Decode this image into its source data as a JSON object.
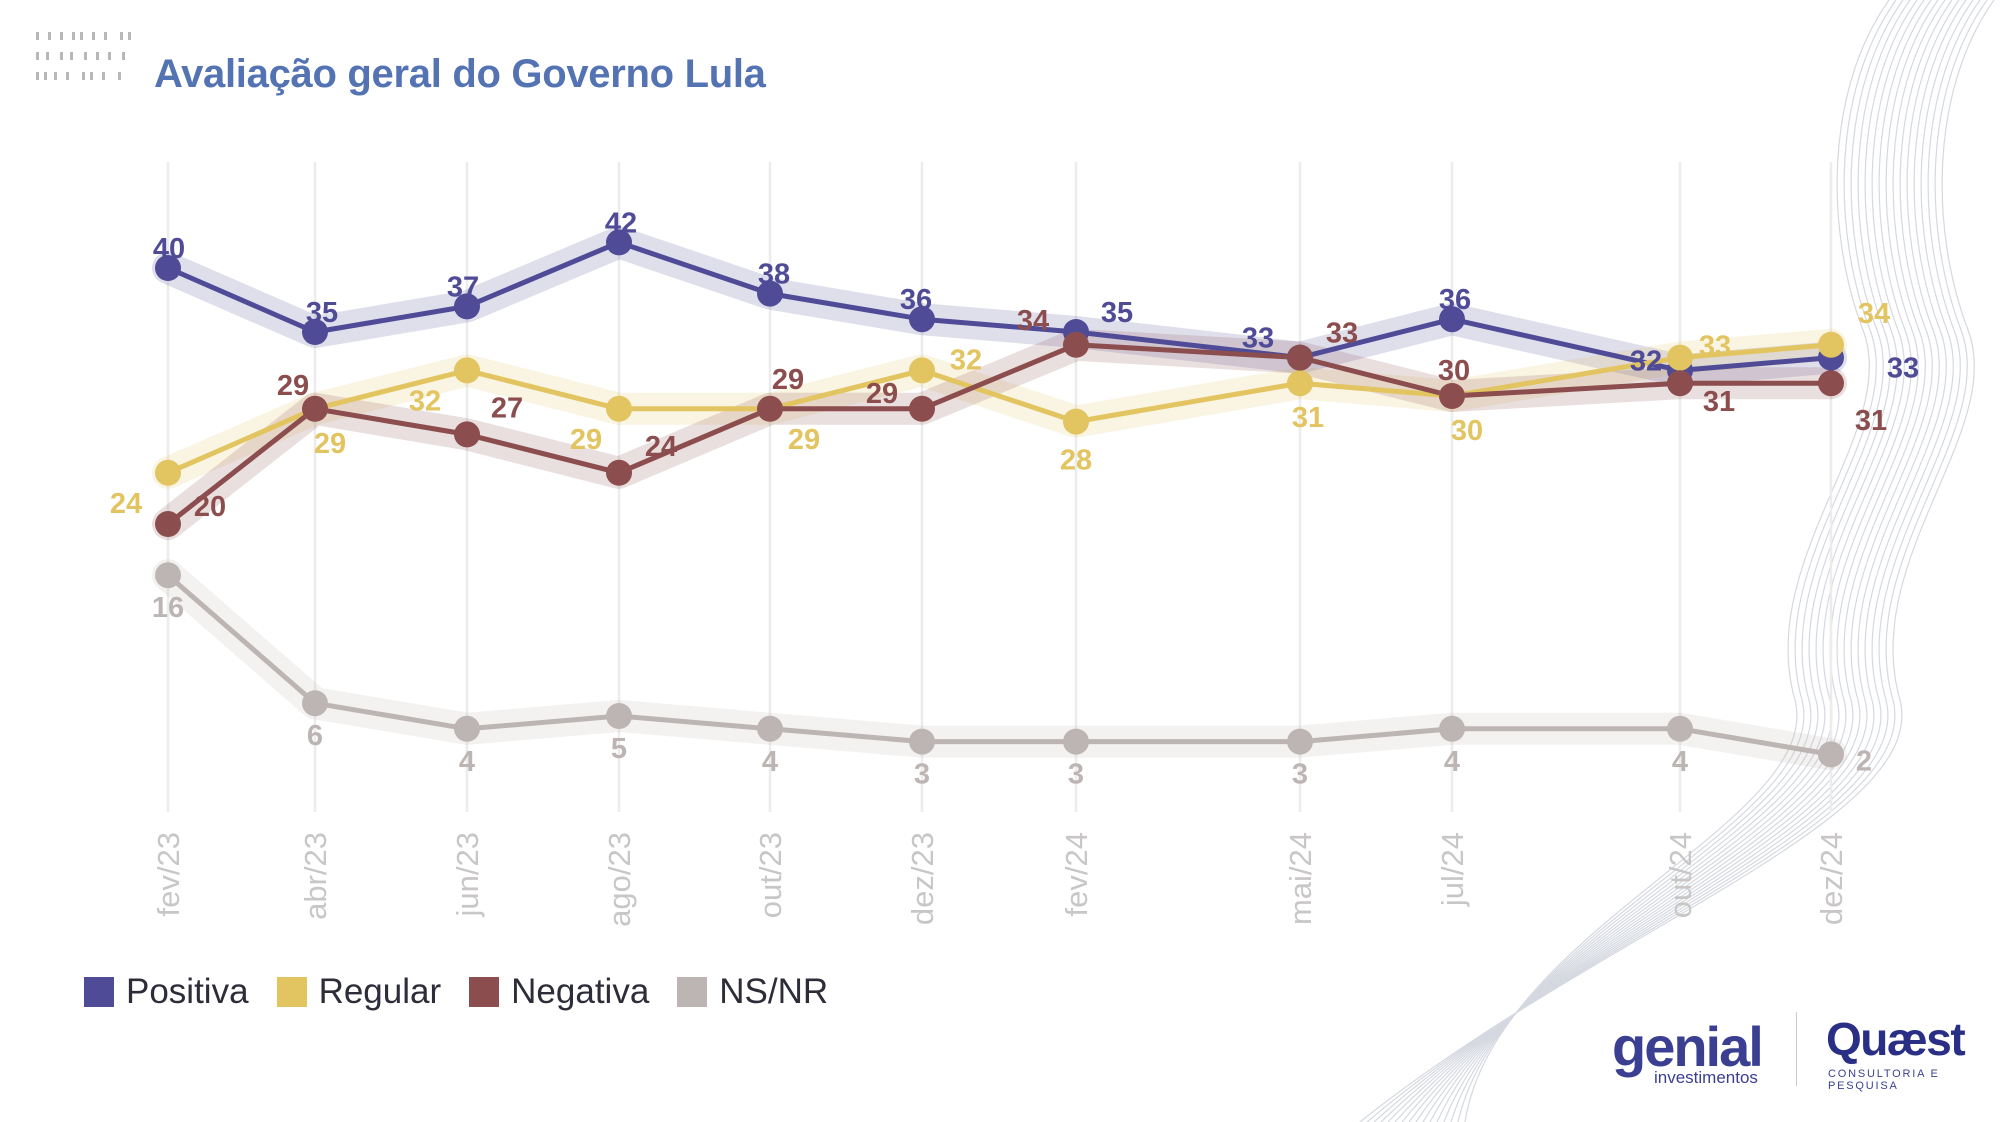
{
  "header": {
    "title": "Avaliação geral do Governo Lula"
  },
  "colors": {
    "positiva": "#4f4b97",
    "regular": "#e2c461",
    "negativa": "#8b4d4d",
    "nsnr": "#bdb5b3",
    "axis_label": "#c9c6c6",
    "grid": "#ececec",
    "title": "#5473b3"
  },
  "chart_data": {
    "type": "line",
    "title": "Avaliação geral do Governo Lula",
    "x": [
      "fev/23",
      "abr/23",
      "jun/23",
      "ago/23",
      "out/23",
      "dez/23",
      "fev/24",
      "mai/24",
      "jul/24",
      "out/24",
      "dez/24"
    ],
    "series": [
      {
        "name": "Positiva",
        "values": [
          40,
          35,
          37,
          42,
          38,
          36,
          35,
          33,
          36,
          32,
          33
        ]
      },
      {
        "name": "Regular",
        "values": [
          24,
          29,
          32,
          29,
          29,
          32,
          28,
          31,
          30,
          33,
          34
        ]
      },
      {
        "name": "Negativa",
        "values": [
          20,
          29,
          27,
          24,
          29,
          29,
          34,
          33,
          30,
          31,
          31
        ]
      },
      {
        "name": "NS/NR",
        "values": [
          16,
          6,
          4,
          5,
          4,
          3,
          3,
          3,
          4,
          4,
          2
        ]
      }
    ],
    "ylim": [
      0,
      46
    ],
    "grid": "vertical",
    "legend_placement": "bottom-left"
  },
  "legend": [
    {
      "label": "Positiva",
      "color": "#4f4b97"
    },
    {
      "label": "Regular",
      "color": "#e2c461"
    },
    {
      "label": "Negativa",
      "color": "#8b4d4d"
    },
    {
      "label": "NS/NR",
      "color": "#bdb5b3"
    }
  ],
  "logos": {
    "genial": {
      "word": "genial",
      "sub": "investimentos"
    },
    "quaest": {
      "word": "Quæst",
      "sub": "CONSULTORIA E PESQUISA"
    }
  }
}
